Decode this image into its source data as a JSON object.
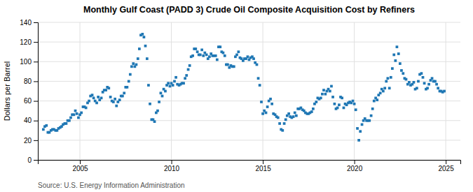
{
  "chart_data": {
    "type": "scatter",
    "title": "Monthly Gulf Coast (PADD 3) Crude Oil Composite Acquisition Cost by Refiners",
    "y_label": "Dollars per Barrel",
    "annotations": [
      "Source: U.S. Energy Information Administration"
    ],
    "marker": "square",
    "grid": true,
    "xlim": [
      2002.7,
      2025.8
    ],
    "xticks": [
      2005,
      2010,
      2015,
      2020,
      2025
    ],
    "ylim": [
      0,
      140
    ],
    "yticks": [
      0,
      20,
      40,
      60,
      80,
      100,
      120,
      140
    ],
    "x": [
      2003.0,
      2003.08,
      2003.17,
      2003.25,
      2003.33,
      2003.42,
      2003.5,
      2003.58,
      2003.67,
      2003.75,
      2003.83,
      2003.92,
      2004.0,
      2004.08,
      2004.17,
      2004.25,
      2004.33,
      2004.42,
      2004.5,
      2004.58,
      2004.67,
      2004.75,
      2004.83,
      2004.92,
      2005.0,
      2005.08,
      2005.17,
      2005.25,
      2005.33,
      2005.42,
      2005.5,
      2005.58,
      2005.67,
      2005.75,
      2005.83,
      2005.92,
      2006.0,
      2006.08,
      2006.17,
      2006.25,
      2006.33,
      2006.42,
      2006.5,
      2006.58,
      2006.67,
      2006.75,
      2006.83,
      2006.92,
      2007.0,
      2007.08,
      2007.17,
      2007.25,
      2007.33,
      2007.42,
      2007.5,
      2007.58,
      2007.67,
      2007.75,
      2007.83,
      2007.92,
      2008.0,
      2008.08,
      2008.17,
      2008.25,
      2008.33,
      2008.42,
      2008.5,
      2008.58,
      2008.67,
      2008.75,
      2008.83,
      2008.92,
      2009.0,
      2009.08,
      2009.17,
      2009.25,
      2009.33,
      2009.42,
      2009.5,
      2009.58,
      2009.67,
      2009.75,
      2009.83,
      2009.92,
      2010.0,
      2010.08,
      2010.17,
      2010.25,
      2010.33,
      2010.42,
      2010.5,
      2010.58,
      2010.67,
      2010.75,
      2010.83,
      2010.92,
      2011.0,
      2011.08,
      2011.17,
      2011.25,
      2011.33,
      2011.42,
      2011.5,
      2011.58,
      2011.67,
      2011.75,
      2011.83,
      2011.92,
      2012.0,
      2012.08,
      2012.17,
      2012.25,
      2012.33,
      2012.42,
      2012.5,
      2012.58,
      2012.67,
      2012.75,
      2012.83,
      2012.92,
      2013.0,
      2013.08,
      2013.17,
      2013.25,
      2013.33,
      2013.42,
      2013.5,
      2013.58,
      2013.67,
      2013.75,
      2013.83,
      2013.92,
      2014.0,
      2014.08,
      2014.17,
      2014.25,
      2014.33,
      2014.42,
      2014.5,
      2014.58,
      2014.67,
      2014.75,
      2014.83,
      2014.92,
      2015.0,
      2015.08,
      2015.17,
      2015.25,
      2015.33,
      2015.42,
      2015.5,
      2015.58,
      2015.67,
      2015.75,
      2015.83,
      2015.92,
      2016.0,
      2016.08,
      2016.17,
      2016.25,
      2016.33,
      2016.42,
      2016.5,
      2016.58,
      2016.67,
      2016.75,
      2016.83,
      2016.92,
      2017.0,
      2017.08,
      2017.17,
      2017.25,
      2017.33,
      2017.42,
      2017.5,
      2017.58,
      2017.67,
      2017.75,
      2017.83,
      2017.92,
      2018.0,
      2018.08,
      2018.17,
      2018.25,
      2018.33,
      2018.42,
      2018.5,
      2018.58,
      2018.67,
      2018.75,
      2018.83,
      2018.92,
      2019.0,
      2019.08,
      2019.17,
      2019.25,
      2019.33,
      2019.42,
      2019.5,
      2019.58,
      2019.67,
      2019.75,
      2019.83,
      2019.92,
      2020.0,
      2020.08,
      2020.17,
      2020.25,
      2020.33,
      2020.42,
      2020.5,
      2020.58,
      2020.67,
      2020.75,
      2020.83,
      2020.92,
      2021.0,
      2021.08,
      2021.17,
      2021.25,
      2021.33,
      2021.42,
      2021.5,
      2021.58,
      2021.67,
      2021.75,
      2021.83,
      2021.92,
      2022.0,
      2022.08,
      2022.17,
      2022.25,
      2022.33,
      2022.42,
      2022.5,
      2022.58,
      2022.67,
      2022.75,
      2022.83,
      2022.92,
      2023.0,
      2023.08,
      2023.17,
      2023.25,
      2023.33,
      2023.42,
      2023.5,
      2023.58,
      2023.67,
      2023.75,
      2023.83,
      2023.92,
      2024.0,
      2024.08,
      2024.17,
      2024.25,
      2024.33,
      2024.42,
      2024.5,
      2024.58,
      2024.67,
      2024.75,
      2024.83,
      2024.92
    ],
    "values": [
      31.0,
      34.0,
      35.0,
      28.0,
      28.0,
      30.0,
      31.0,
      31.0,
      30.0,
      30.0,
      32.0,
      33.0,
      34.0,
      36.0,
      37.0,
      37.0,
      40.0,
      40.0,
      43.0,
      46.0,
      46.0,
      50.0,
      47.0,
      43.0,
      46.0,
      48.0,
      54.0,
      54.0,
      53.0,
      58.0,
      60.0,
      65.0,
      66.0,
      63.0,
      60.0,
      58.0,
      64.0,
      61.0,
      63.0,
      69.0,
      71.0,
      71.0,
      74.0,
      73.0,
      64.0,
      60.0,
      59.0,
      62.0,
      55.0,
      59.0,
      61.0,
      65.0,
      65.0,
      68.0,
      74.0,
      74.0,
      80.0,
      87.0,
      95.0,
      98.0,
      95.0,
      97.0,
      103.0,
      113.0,
      127.0,
      128.0,
      125.0,
      116.0,
      103.0,
      76.0,
      57.0,
      41.0,
      41.0,
      39.0,
      48.0,
      50.0,
      59.0,
      68.0,
      65.0,
      72.0,
      70.0,
      76.0,
      78.0,
      75.0,
      78.0,
      76.0,
      80.0,
      84.0,
      77.0,
      76.0,
      77.0,
      78.0,
      78.0,
      83.0,
      86.0,
      92.0,
      96.0,
      105.0,
      106.0,
      113.0,
      113.0,
      110.0,
      107.0,
      107.0,
      112.0,
      106.0,
      109.0,
      107.0,
      103.0,
      105.0,
      108.0,
      106.0,
      106.0,
      106.0,
      102.0,
      115.0,
      115.0,
      110.0,
      109.0,
      106.0,
      97.0,
      97.0,
      94.0,
      96.0,
      95.0,
      95.0,
      105.0,
      107.0,
      110.0,
      104.0,
      103.0,
      101.0,
      103.0,
      103.0,
      105.0,
      102.0,
      104.0,
      105.0,
      103.0,
      99.0,
      97.0,
      83.0,
      76.0,
      59.0,
      47.0,
      50.0,
      48.0,
      54.0,
      60.0,
      62.0,
      57.0,
      47.0,
      46.0,
      44.0,
      43.0,
      37.0,
      31.0,
      30.0,
      37.0,
      41.0,
      45.0,
      47.0,
      44.0,
      43.0,
      44.0,
      48.0,
      45.0,
      52.0,
      52.0,
      53.0,
      51.0,
      50.0,
      48.0,
      47.0,
      47.0,
      48.0,
      49.0,
      52.0,
      57.0,
      59.0,
      63.0,
      62.0,
      63.0,
      67.0,
      71.0,
      67.0,
      70.0,
      72.0,
      70.0,
      75.0,
      64.0,
      57.0,
      52.0,
      53.0,
      56.0,
      64.0,
      63.0,
      53.0,
      57.0,
      56.0,
      58.0,
      59.0,
      58.0,
      60.0,
      57.0,
      51.0,
      32.0,
      20.0,
      29.0,
      36.0,
      40.0,
      42.0,
      40.0,
      40.0,
      40.0,
      45.0,
      52.0,
      60.0,
      63.0,
      61.0,
      66.0,
      68.0,
      72.0,
      70.0,
      73.0,
      80.0,
      83.0,
      73.0,
      84.0,
      93.0,
      107.0,
      101.0,
      115.0,
      108.0,
      98.0,
      91.0,
      88.0,
      83.0,
      82.0,
      77.0,
      79.0,
      76.0,
      77.0,
      79.0,
      72.0,
      73.0,
      80.0,
      87.0,
      88.0,
      84.0,
      78.0,
      72.0,
      73.0,
      77.0,
      81.0,
      83.0,
      80.0,
      80.0,
      77.0,
      73.0,
      70.0,
      70.0,
      69.0,
      70.0
    ]
  }
}
